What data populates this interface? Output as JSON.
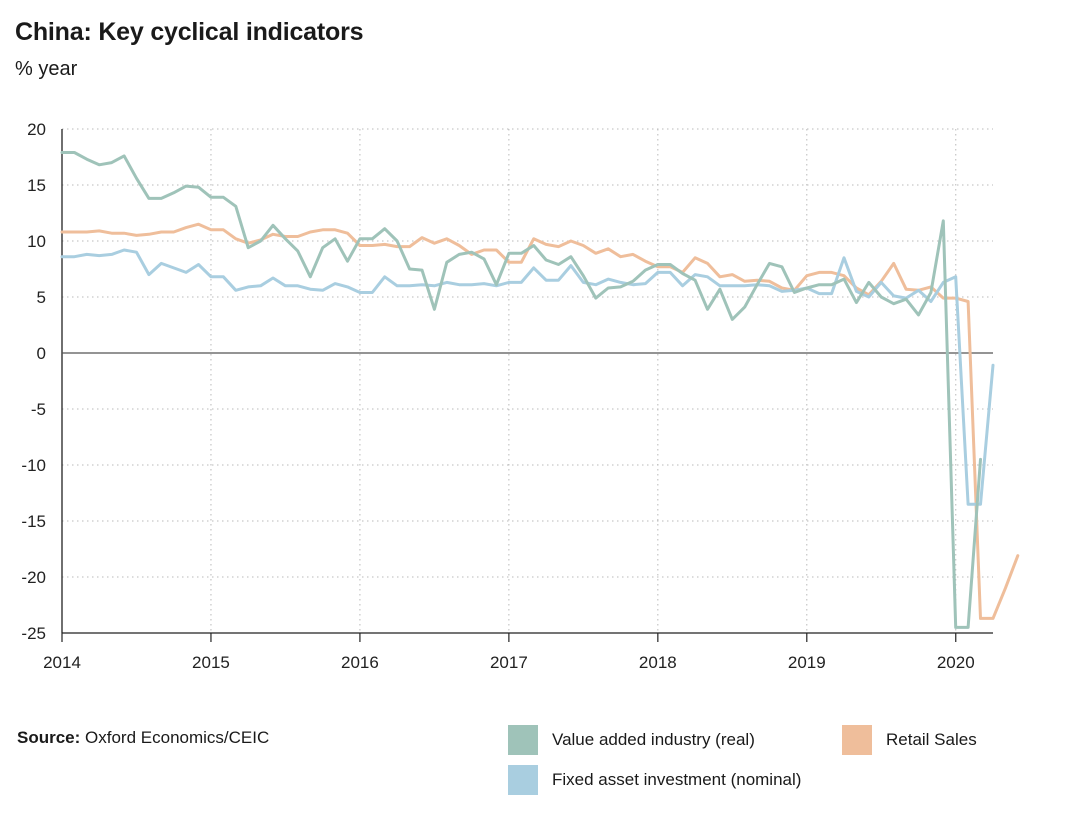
{
  "title": "China: Key cyclical indicators",
  "subtitle": "% year",
  "source_label": "Source:",
  "source_text": "Oxford Economics/CEIC",
  "colors": {
    "industry": "#9fc3b9",
    "retail": "#efbe9b",
    "investment": "#a9cee0",
    "zero_line": "#555555",
    "grid": "#b9b9b9"
  },
  "legend": [
    {
      "key": "industry",
      "label": "Value added industry (real)"
    },
    {
      "key": "retail",
      "label": "Retail Sales"
    },
    {
      "key": "investment",
      "label": "Fixed asset investment (nominal)"
    }
  ],
  "chart_data": {
    "type": "line",
    "title": "China: Key cyclical indicators",
    "ylabel": "% year",
    "xlabel": "",
    "xlim": [
      2014.0,
      2020.25
    ],
    "ylim": [
      -25,
      20
    ],
    "yticks": [
      20,
      15,
      10,
      5,
      0,
      -5,
      -10,
      -15,
      -20,
      -25
    ],
    "xticks": [
      2014,
      2015,
      2016,
      2017,
      2018,
      2019,
      2020
    ],
    "grid": true,
    "series": [
      {
        "name": "Value added industry (real)",
        "key": "industry",
        "x_start": 2014.0,
        "x_step": 0.08333,
        "values": [
          17.9,
          17.9,
          17.3,
          16.8,
          17.0,
          17.6,
          15.6,
          13.8,
          13.8,
          14.3,
          14.9,
          14.8,
          13.9,
          13.9,
          13.1,
          9.4,
          10.0,
          11.4,
          10.2,
          9.1,
          6.8,
          9.4,
          10.2,
          8.2,
          10.2,
          10.2,
          11.1,
          10.0,
          7.5,
          7.4,
          3.9,
          8.1,
          8.8,
          9.0,
          8.4,
          6.1,
          8.9,
          8.9,
          9.6,
          8.3,
          7.9,
          8.6,
          6.9,
          4.9,
          5.8,
          5.9,
          6.4,
          7.4,
          7.9,
          7.9,
          7.1,
          6.5,
          3.9,
          5.7,
          3.0,
          4.1,
          6.1,
          8.0,
          7.7,
          5.4,
          5.8,
          6.1,
          6.1,
          6.6,
          4.5,
          6.3,
          5.0,
          4.4,
          4.8,
          3.4,
          5.4,
          11.8,
          -24.5,
          -24.5,
          -9.5
        ]
      },
      {
        "name": "Retail Sales",
        "key": "retail",
        "x_start": 2014.0,
        "x_step": 0.08333,
        "values": [
          10.8,
          10.8,
          10.8,
          10.9,
          10.7,
          10.7,
          10.5,
          10.6,
          10.8,
          10.8,
          11.2,
          11.5,
          11.0,
          11.0,
          10.2,
          9.8,
          10.1,
          10.6,
          10.4,
          10.4,
          10.8,
          11.0,
          11.0,
          10.7,
          9.6,
          9.6,
          9.7,
          9.5,
          9.5,
          10.3,
          9.8,
          10.2,
          9.6,
          8.8,
          9.2,
          9.2,
          8.1,
          8.1,
          10.2,
          9.7,
          9.5,
          10.0,
          9.6,
          8.9,
          9.3,
          8.6,
          8.8,
          8.2,
          7.7,
          7.7,
          7.2,
          8.5,
          8.0,
          6.8,
          7.0,
          6.4,
          6.5,
          6.4,
          5.8,
          5.6,
          6.9,
          7.2,
          7.2,
          6.9,
          5.8,
          5.2,
          6.4,
          8.0,
          5.7,
          5.6,
          5.9,
          4.9,
          4.9,
          4.6,
          -23.7,
          -23.7,
          -21.0,
          -18.1
        ]
      },
      {
        "name": "Fixed asset investment (nominal)",
        "key": "investment",
        "x_start": 2014.0,
        "x_step": 0.08333,
        "values": [
          8.6,
          8.6,
          8.8,
          8.7,
          8.8,
          9.2,
          9.0,
          7.0,
          8.0,
          7.6,
          7.2,
          7.9,
          6.8,
          6.8,
          5.6,
          5.9,
          6.0,
          6.7,
          6.0,
          6.0,
          5.7,
          5.6,
          6.2,
          5.9,
          5.4,
          5.4,
          6.8,
          6.0,
          6.0,
          6.1,
          6.0,
          6.3,
          6.1,
          6.1,
          6.2,
          6.0,
          6.3,
          6.3,
          7.6,
          6.5,
          6.5,
          7.8,
          6.3,
          6.1,
          6.6,
          6.3,
          6.1,
          6.2,
          7.2,
          7.2,
          6.0,
          7.0,
          6.8,
          6.0,
          6.0,
          6.0,
          6.1,
          6.0,
          5.5,
          5.6,
          5.8,
          5.3,
          5.3,
          8.5,
          5.5,
          5.0,
          6.3,
          5.1,
          4.9,
          5.6,
          4.6,
          6.3,
          6.8,
          -13.5,
          -13.5,
          -1.1
        ]
      }
    ]
  }
}
